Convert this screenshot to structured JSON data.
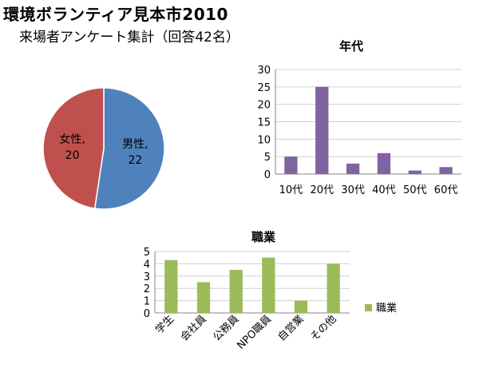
{
  "header": {
    "title": "環境ボランティア見本市2010",
    "subtitle": "来場者アンケート集計（回答42名）"
  },
  "chart_data": [
    {
      "type": "pie",
      "title": "",
      "slices": [
        {
          "label": "男性,",
          "value": 22,
          "color": "#4f81bd"
        },
        {
          "label": "女性,",
          "value": 20,
          "color": "#c0504d"
        }
      ]
    },
    {
      "type": "bar",
      "title": "年代",
      "categories": [
        "10代",
        "20代",
        "30代",
        "40代",
        "50代",
        "60代"
      ],
      "values": [
        5,
        25,
        3,
        6,
        1,
        2
      ],
      "ylim": [
        0,
        30
      ],
      "yticks": [
        0,
        5,
        10,
        15,
        20,
        25,
        30
      ],
      "grid": true,
      "color": "#8064a2"
    },
    {
      "type": "bar",
      "title": "職業",
      "categories": [
        "学生",
        "会社員",
        "公務員",
        "NPO職員",
        "自営業",
        "その他"
      ],
      "values": [
        4.3,
        2.5,
        3.5,
        4.5,
        1,
        4
      ],
      "ylim": [
        0,
        5
      ],
      "yticks": [
        0,
        1,
        2,
        3,
        4,
        5
      ],
      "grid": true,
      "legend": {
        "label": "職業",
        "placement": "right"
      },
      "color": "#9bbb59"
    }
  ]
}
